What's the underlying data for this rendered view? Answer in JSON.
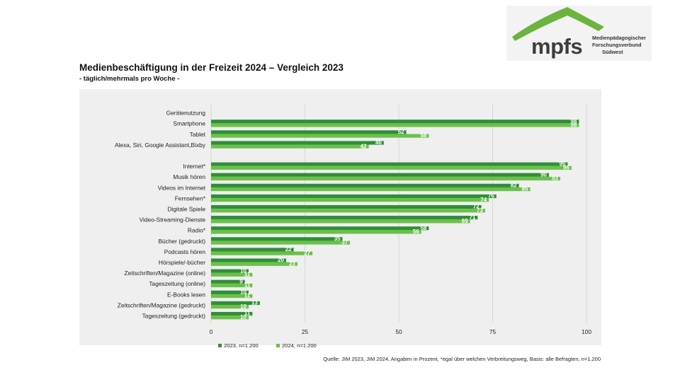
{
  "header": {
    "title": "Medienbeschäftigung in der Freizeit 2024 – Vergleich 2023",
    "subtitle": "- täglich/mehrmals pro Woche -"
  },
  "logo": {
    "name": "mpfs",
    "line1": "Medienpädagogischer",
    "line2": "Forschungsverbund",
    "line3": "Südwest"
  },
  "footer": {
    "source": "Quelle: JIM 2023, JIM 2024, Angaben in Prozent, *egal über welchen Verbreitungsweg, Basis: alle Befragten, n=1.200"
  },
  "colors": {
    "series_2023": "#2f8f36",
    "series_2024": "#6cc04a",
    "logo_green": "#6cb33f",
    "panel_bg": "#efefef"
  },
  "chart_data": {
    "type": "bar",
    "orientation": "horizontal",
    "categories": [
      "Gerätenutzung",
      "Smartphone",
      "Tablet",
      "Alexa, Siri, Google Assistant,Bixby",
      "",
      "Internet*",
      "Musik hören",
      "Videos im Internet",
      "Fernsehen*",
      "Digitale Spiele",
      "Video-Streaming-Dienste",
      "Radio*",
      "Bücher (gedruckt)",
      "Podcasts hören",
      "Hörspiele/-bücher",
      "Zeitschriften/Magazine (online)",
      "Tageszeitung (online)",
      "E-Books lesen",
      "Zeitschriften/Magazine (gedruckt)",
      "Tageszeitung (gedruckt)"
    ],
    "series": [
      {
        "name": "2023, n=1.200",
        "color": "#2f8f36",
        "values": [
          null,
          98,
          52,
          46,
          null,
          95,
          90,
          82,
          76,
          72,
          71,
          58,
          35,
          22,
          20,
          10,
          9,
          10,
          13,
          11
        ]
      },
      {
        "name": "2024, n=1.200",
        "color": "#6cc04a",
        "values": [
          null,
          98,
          58,
          42,
          null,
          96,
          93,
          85,
          74,
          73,
          69,
          56,
          37,
          27,
          23,
          11,
          11,
          11,
          10,
          10
        ]
      }
    ],
    "xlim": [
      0,
      100
    ],
    "xticks": [
      0,
      25,
      50,
      75,
      100
    ],
    "xlabel": "",
    "ylabel": "",
    "grid": true,
    "legend": "bottom-left"
  }
}
